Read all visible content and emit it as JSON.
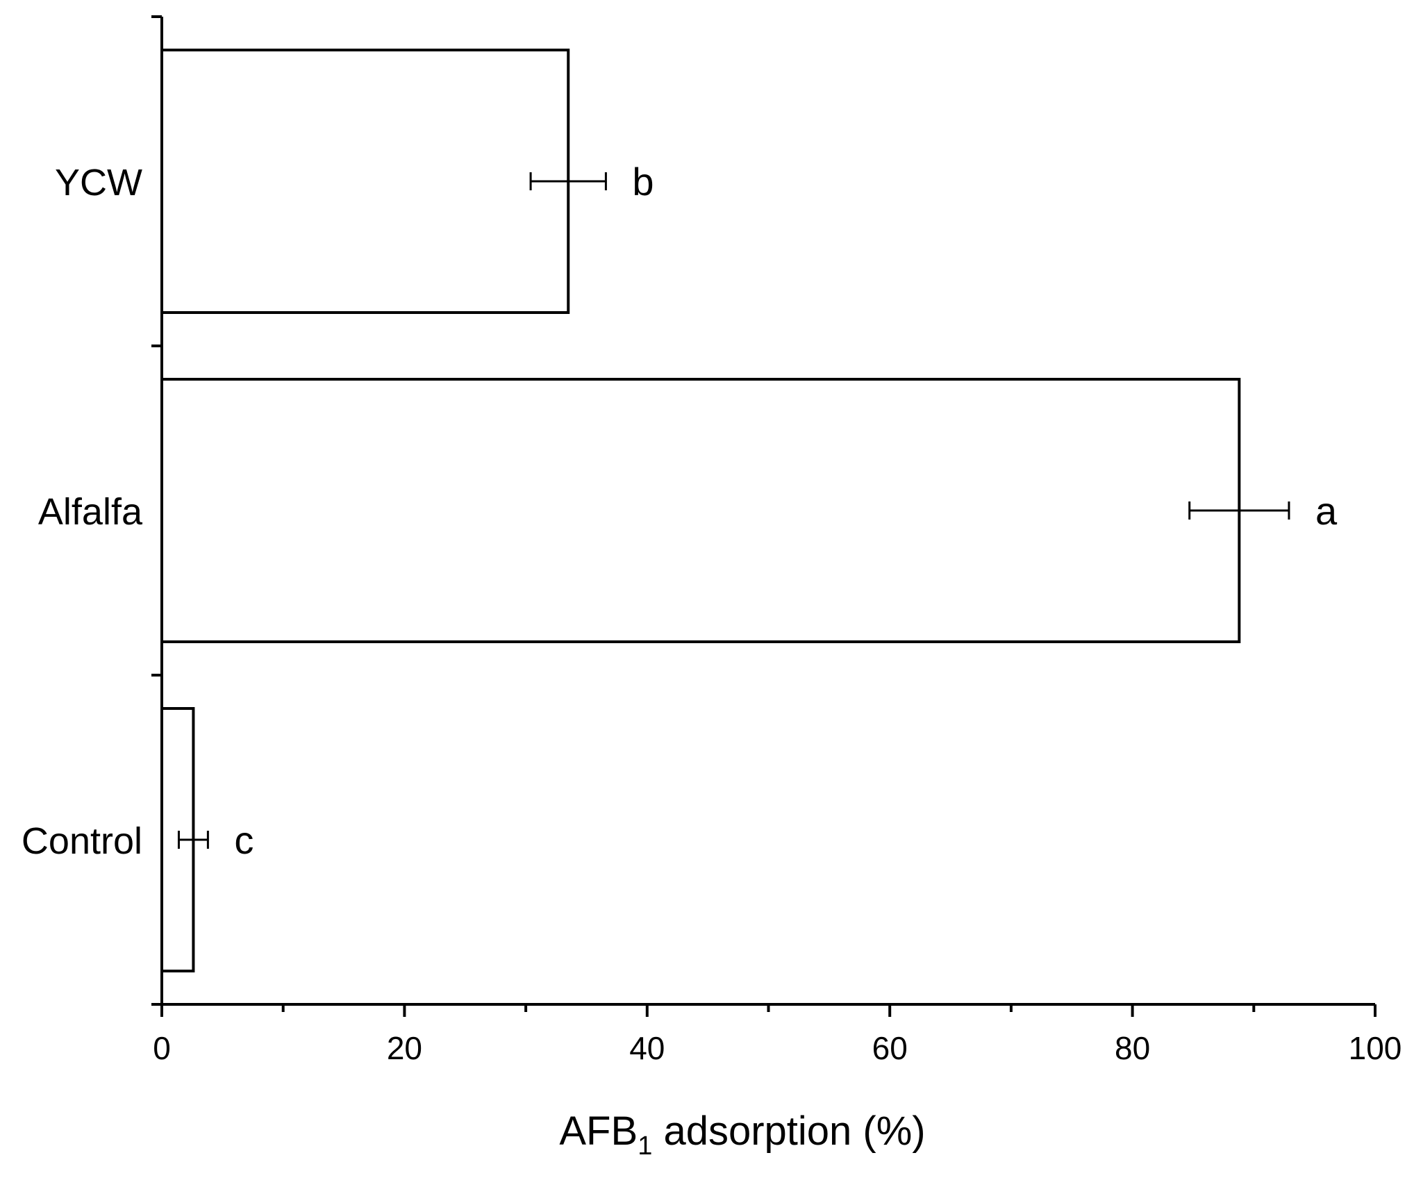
{
  "chart_data": {
    "type": "bar",
    "orientation": "horizontal",
    "categories": [
      "YCW",
      "Alfalfa",
      "Control"
    ],
    "values": [
      33.5,
      88.8,
      2.6
    ],
    "errors": [
      3.1,
      4.1,
      1.2
    ],
    "significance": [
      "b",
      "a",
      "c"
    ],
    "xlabel": {
      "main": "AFB",
      "subscript": "1",
      "rest": " adsorption (%)"
    },
    "xlim": [
      0,
      100
    ],
    "xticks": [
      "0",
      "20",
      "40",
      "60",
      "80",
      "100"
    ],
    "xtick_values": [
      0,
      20,
      40,
      60,
      80,
      100
    ],
    "minor_xtick_values": [
      10,
      30,
      50,
      70,
      90
    ],
    "grid": false,
    "bar_fill": "#ffffff",
    "bar_edge": "#000000",
    "background": "#ffffff"
  }
}
